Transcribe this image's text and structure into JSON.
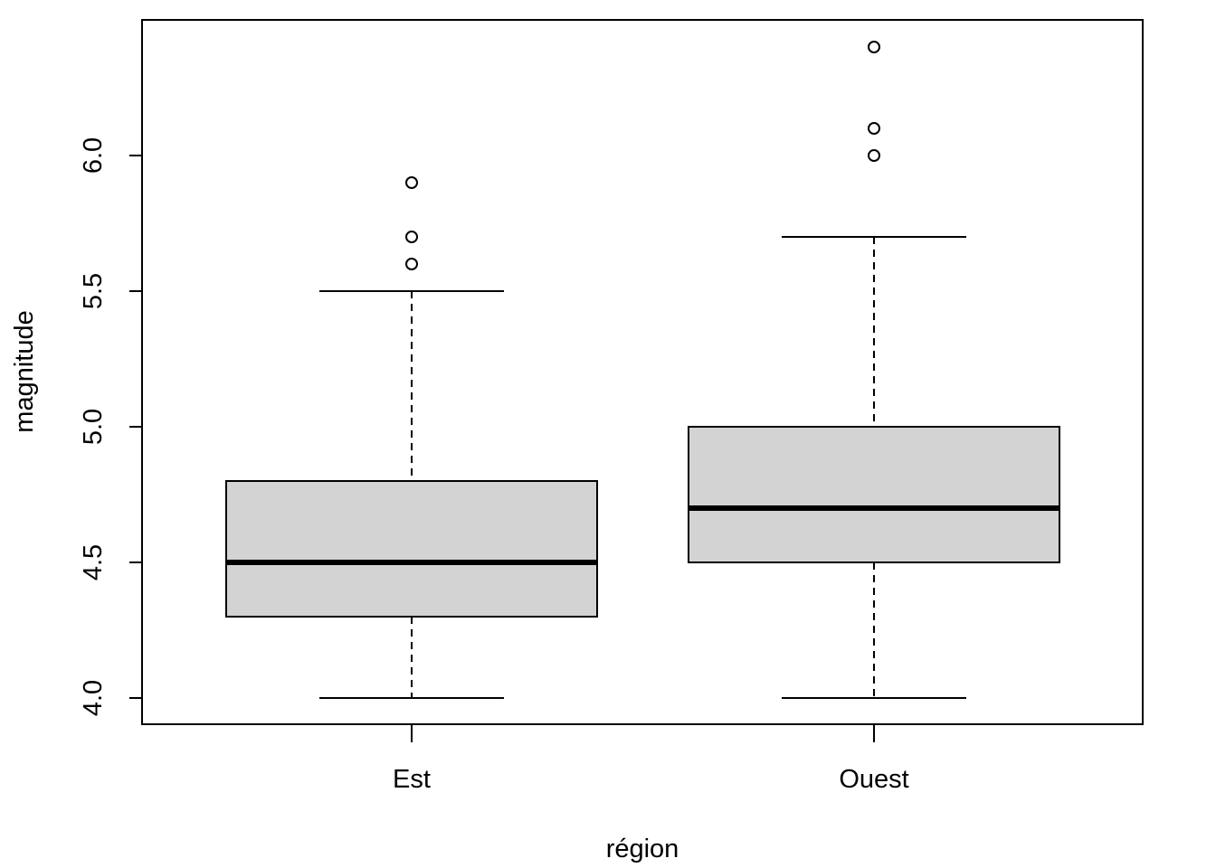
{
  "chart_data": {
    "type": "boxplot",
    "xlabel": "région",
    "ylabel": "magnitude",
    "ylim": [
      3.9,
      6.5
    ],
    "yticks": [
      "4.0",
      "4.5",
      "5.0",
      "5.5",
      "6.0"
    ],
    "box_fill": "#d3d3d3",
    "grid": false,
    "categories": [
      "Est",
      "Ouest"
    ],
    "boxes": [
      {
        "name": "Est",
        "whisker_low": 4.0,
        "q1": 4.3,
        "median": 4.5,
        "q3": 4.8,
        "whisker_high": 5.5,
        "outliers": [
          5.6,
          5.7,
          5.9
        ]
      },
      {
        "name": "Ouest",
        "whisker_low": 4.0,
        "q1": 4.5,
        "median": 4.7,
        "q3": 5.0,
        "whisker_high": 5.7,
        "outliers": [
          6.0,
          6.1,
          6.4
        ]
      }
    ]
  }
}
